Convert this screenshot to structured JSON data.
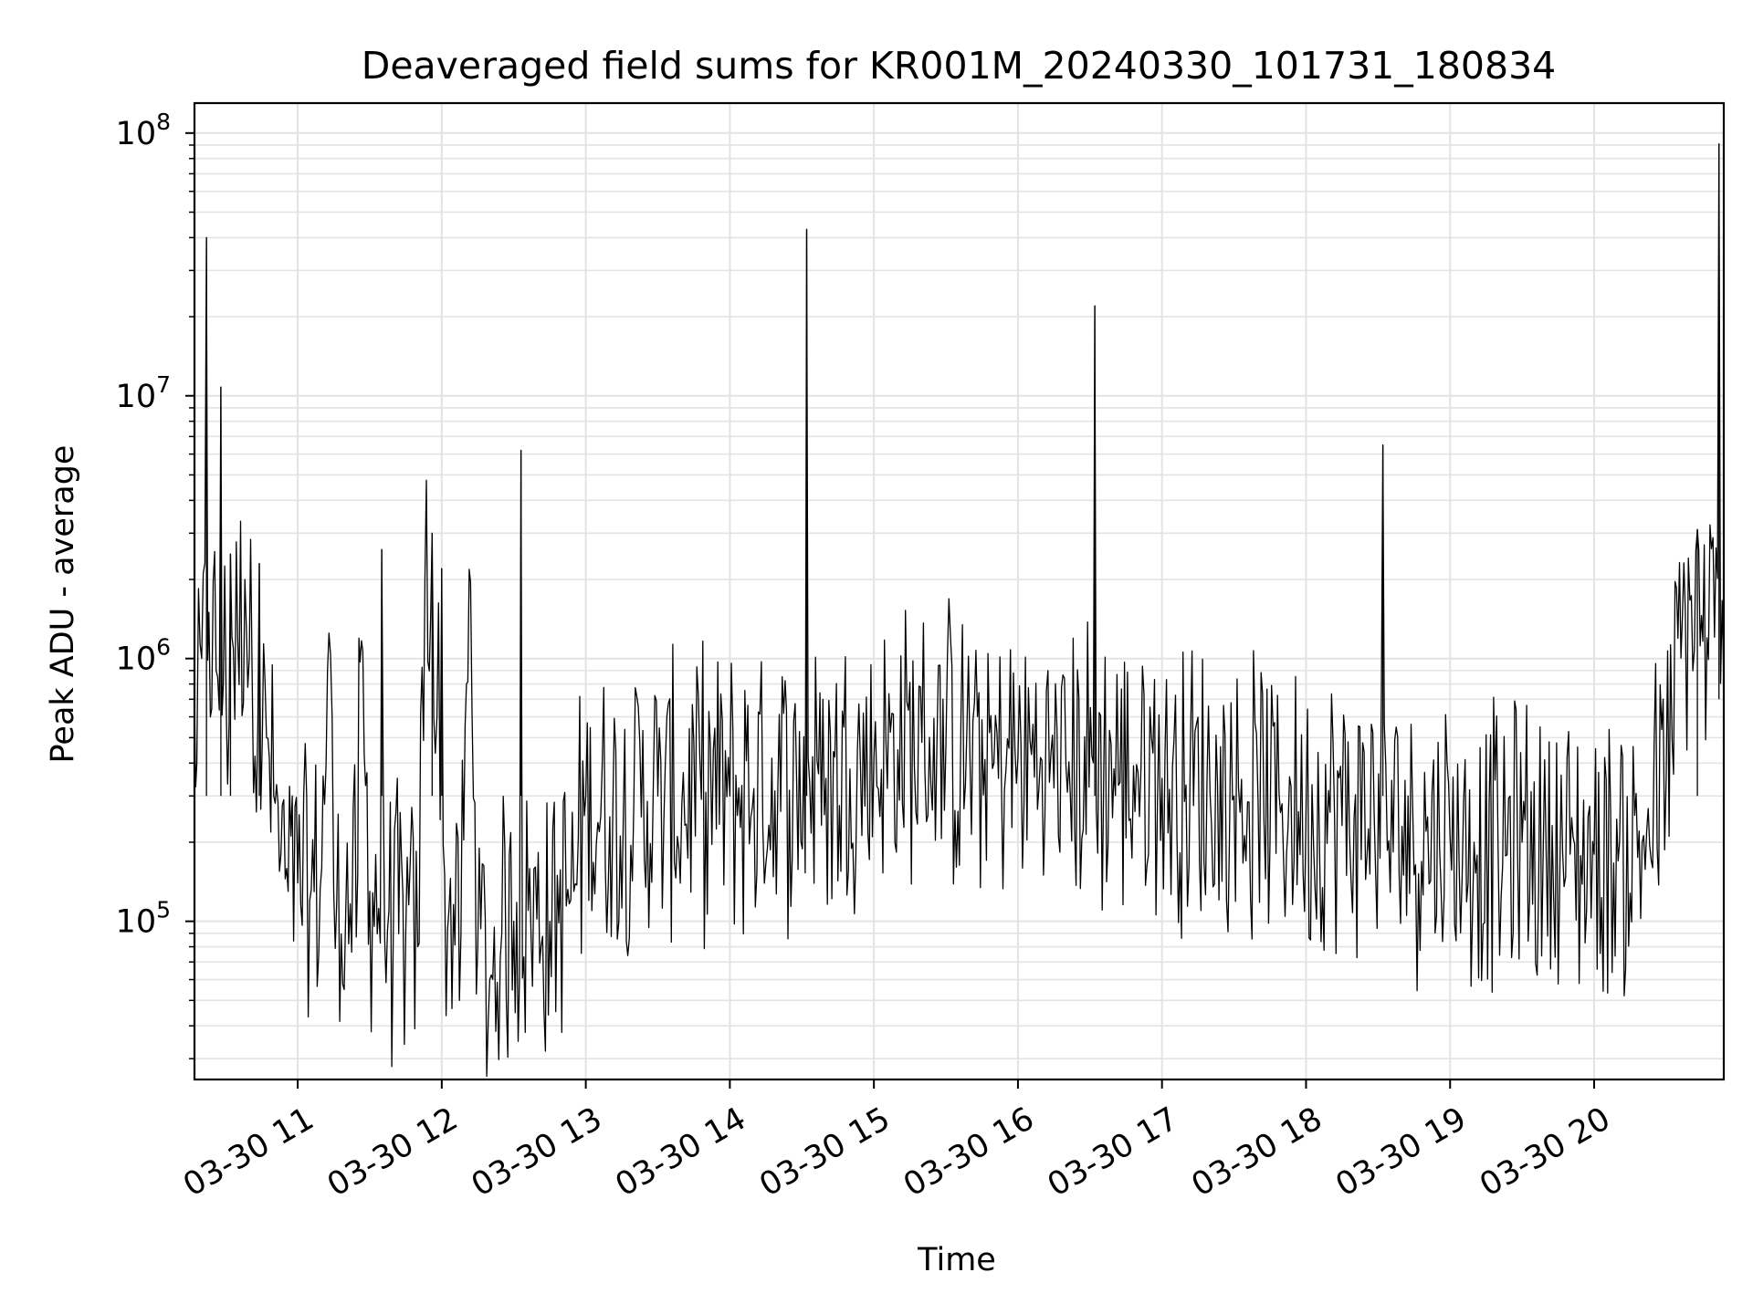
{
  "chart_data": {
    "type": "line",
    "title": "Deaveraged field sums for KR001M_20240330_101731_180834",
    "xlabel": "Time",
    "ylabel": "Peak ADU - average",
    "yscale": "log",
    "ylim": [
      25000,
      130000000
    ],
    "xlim": [
      "2024-03-30 10:17",
      "2024-03-30 20:54"
    ],
    "grid": true,
    "x_ticks": [
      "03-30 11",
      "03-30 12",
      "03-30 13",
      "03-30 14",
      "03-30 15",
      "03-30 16",
      "03-30 17",
      "03-30 18",
      "03-30 19",
      "03-30 20"
    ],
    "y_ticks": [
      {
        "base": "10",
        "exp": "5",
        "value": 100000
      },
      {
        "base": "10",
        "exp": "6",
        "value": 1000000
      },
      {
        "base": "10",
        "exp": "7",
        "value": 10000000
      },
      {
        "base": "10",
        "exp": "8",
        "value": 100000000
      }
    ],
    "line_color": "#000000",
    "series": [
      {
        "values": [
          [
            "2024-03-30 10:17",
            700000
          ],
          [
            "2024-03-30 10:18",
            400000
          ],
          [
            "2024-03-30 10:20",
            1000000
          ],
          [
            "2024-03-30 10:22",
            40000000
          ],
          [
            "2024-03-30 10:23",
            1500000
          ],
          [
            "2024-03-30 10:26",
            900000
          ],
          [
            "2024-03-30 10:28",
            10800000
          ],
          [
            "2024-03-30 10:29",
            800000
          ],
          [
            "2024-03-30 10:32",
            2500000
          ],
          [
            "2024-03-30 10:35",
            1200000
          ],
          [
            "2024-03-30 10:38",
            2000000
          ],
          [
            "2024-03-30 10:41",
            900000
          ],
          [
            "2024-03-30 10:44",
            2300000
          ],
          [
            "2024-03-30 10:47",
            500000
          ],
          [
            "2024-03-30 10:50",
            300000
          ],
          [
            "2024-03-30 10:53",
            180000
          ],
          [
            "2024-03-30 10:56",
            130000
          ],
          [
            "2024-03-30 11:00",
            140000
          ],
          [
            "2024-03-30 11:05",
            120000
          ],
          [
            "2024-03-30 11:10",
            160000
          ],
          [
            "2024-03-30 11:13",
            1250000
          ],
          [
            "2024-03-30 11:15",
            130000
          ],
          [
            "2024-03-30 11:20",
            110000
          ],
          [
            "2024-03-30 11:25",
            150000
          ],
          [
            "2024-03-30 11:26",
            970000
          ],
          [
            "2024-03-30 11:30",
            130000
          ],
          [
            "2024-03-30 11:35",
            2600000
          ],
          [
            "2024-03-30 11:38",
            110000
          ],
          [
            "2024-03-30 11:45",
            90000
          ],
          [
            "2024-03-30 11:50",
            80000
          ],
          [
            "2024-03-30 11:53",
            2000000
          ],
          [
            "2024-03-30 11:56",
            3000000
          ],
          [
            "2024-03-30 11:58",
            600000
          ],
          [
            "2024-03-30 12:00",
            2200000
          ],
          [
            "2024-03-30 12:03",
            110000
          ],
          [
            "2024-03-30 12:08",
            90000
          ],
          [
            "2024-03-30 12:12",
            1950000
          ],
          [
            "2024-03-30 12:15",
            80000
          ],
          [
            "2024-03-30 12:20",
            60000
          ],
          [
            "2024-03-30 12:25",
            90000
          ],
          [
            "2024-03-30 12:30",
            100000
          ],
          [
            "2024-03-30 12:33",
            6200000
          ],
          [
            "2024-03-30 12:36",
            110000
          ],
          [
            "2024-03-30 12:45",
            100000
          ],
          [
            "2024-03-30 12:55",
            130000
          ],
          [
            "2024-03-30 13:00",
            300000
          ],
          [
            "2024-03-30 13:10",
            250000
          ],
          [
            "2024-03-30 13:20",
            280000
          ],
          [
            "2024-03-30 13:30",
            300000
          ],
          [
            "2024-03-30 13:40",
            280000
          ],
          [
            "2024-03-30 13:50",
            310000
          ],
          [
            "2024-03-30 14:00",
            300000
          ],
          [
            "2024-03-30 14:10",
            320000
          ],
          [
            "2024-03-30 14:20",
            330000
          ],
          [
            "2024-03-30 14:32",
            43000000
          ],
          [
            "2024-03-30 14:40",
            350000
          ],
          [
            "2024-03-30 14:50",
            380000
          ],
          [
            "2024-03-30 15:00",
            420000
          ],
          [
            "2024-03-30 15:10",
            450000
          ],
          [
            "2024-03-30 15:20",
            480000
          ],
          [
            "2024-03-30 15:30",
            460000
          ],
          [
            "2024-03-30 15:40",
            430000
          ],
          [
            "2024-03-30 15:50",
            400000
          ],
          [
            "2024-03-30 16:00",
            420000
          ],
          [
            "2024-03-30 16:10",
            410000
          ],
          [
            "2024-03-30 16:20",
            390000
          ],
          [
            "2024-03-30 16:32",
            22000000
          ],
          [
            "2024-03-30 16:40",
            380000
          ],
          [
            "2024-03-30 16:50",
            370000
          ],
          [
            "2024-03-30 17:00",
            350000
          ],
          [
            "2024-03-30 17:10",
            330000
          ],
          [
            "2024-03-30 17:20",
            310000
          ],
          [
            "2024-03-30 17:30",
            300000
          ],
          [
            "2024-03-30 17:40",
            290000
          ],
          [
            "2024-03-30 17:50",
            280000
          ],
          [
            "2024-03-30 18:00",
            270000
          ],
          [
            "2024-03-30 18:10",
            260000
          ],
          [
            "2024-03-30 18:20",
            250000
          ],
          [
            "2024-03-30 18:32",
            6500000
          ],
          [
            "2024-03-30 18:40",
            230000
          ],
          [
            "2024-03-30 18:50",
            220000
          ],
          [
            "2024-03-30 19:00",
            210000
          ],
          [
            "2024-03-30 19:10",
            200000
          ],
          [
            "2024-03-30 19:20",
            190000
          ],
          [
            "2024-03-30 19:30",
            200000
          ],
          [
            "2024-03-30 19:40",
            190000
          ],
          [
            "2024-03-30 19:50",
            180000
          ],
          [
            "2024-03-30 20:00",
            180000
          ],
          [
            "2024-03-30 20:10",
            170000
          ],
          [
            "2024-03-30 20:20",
            200000
          ],
          [
            "2024-03-30 20:30",
            350000
          ],
          [
            "2024-03-30 20:38",
            1500000
          ],
          [
            "2024-03-30 20:43",
            3100000
          ],
          [
            "2024-03-30 20:47",
            1200000
          ],
          [
            "2024-03-30 20:52",
            91000000
          ],
          [
            "2024-03-30 20:54",
            800000
          ]
        ]
      }
    ]
  }
}
